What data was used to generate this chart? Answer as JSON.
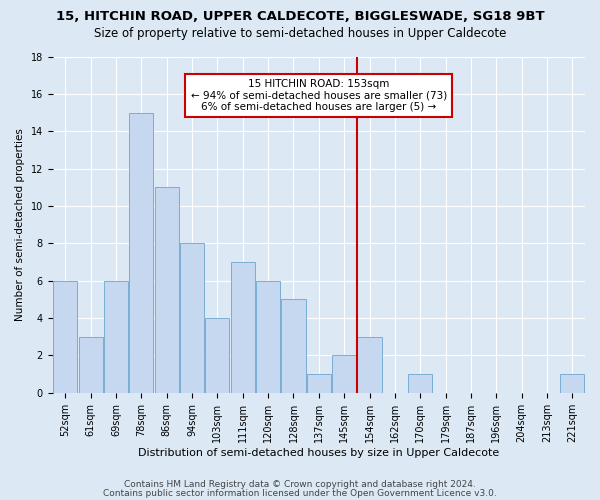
{
  "title1": "15, HITCHIN ROAD, UPPER CALDECOTE, BIGGLESWADE, SG18 9BT",
  "title2": "Size of property relative to semi-detached houses in Upper Caldecote",
  "xlabel": "Distribution of semi-detached houses by size in Upper Caldecote",
  "ylabel": "Number of semi-detached properties",
  "categories": [
    "52sqm",
    "61sqm",
    "69sqm",
    "78sqm",
    "86sqm",
    "94sqm",
    "103sqm",
    "111sqm",
    "120sqm",
    "128sqm",
    "137sqm",
    "145sqm",
    "154sqm",
    "162sqm",
    "170sqm",
    "179sqm",
    "187sqm",
    "196sqm",
    "204sqm",
    "213sqm",
    "221sqm"
  ],
  "values": [
    6,
    3,
    6,
    15,
    11,
    8,
    4,
    7,
    6,
    5,
    1,
    2,
    3,
    0,
    1,
    0,
    0,
    0,
    0,
    0,
    1
  ],
  "bar_color": "#c5d8f0",
  "bar_edge_color": "#7aadd4",
  "pct_smaller": 94,
  "num_smaller": 73,
  "pct_larger": 6,
  "num_larger": 5,
  "annotation_box_color": "#cc0000",
  "ylim": [
    0,
    18
  ],
  "yticks": [
    0,
    2,
    4,
    6,
    8,
    10,
    12,
    14,
    16,
    18
  ],
  "footer1": "Contains HM Land Registry data © Crown copyright and database right 2024.",
  "footer2": "Contains public sector information licensed under the Open Government Licence v3.0.",
  "background_color": "#dce9f5",
  "plot_bg_color": "#dce9f5",
  "grid_color": "white",
  "title1_fontsize": 9.5,
  "title2_fontsize": 8.5,
  "tick_fontsize": 7,
  "ylabel_fontsize": 7.5,
  "xlabel_fontsize": 8,
  "annotation_fontsize": 7.5,
  "footer_fontsize": 6.5
}
